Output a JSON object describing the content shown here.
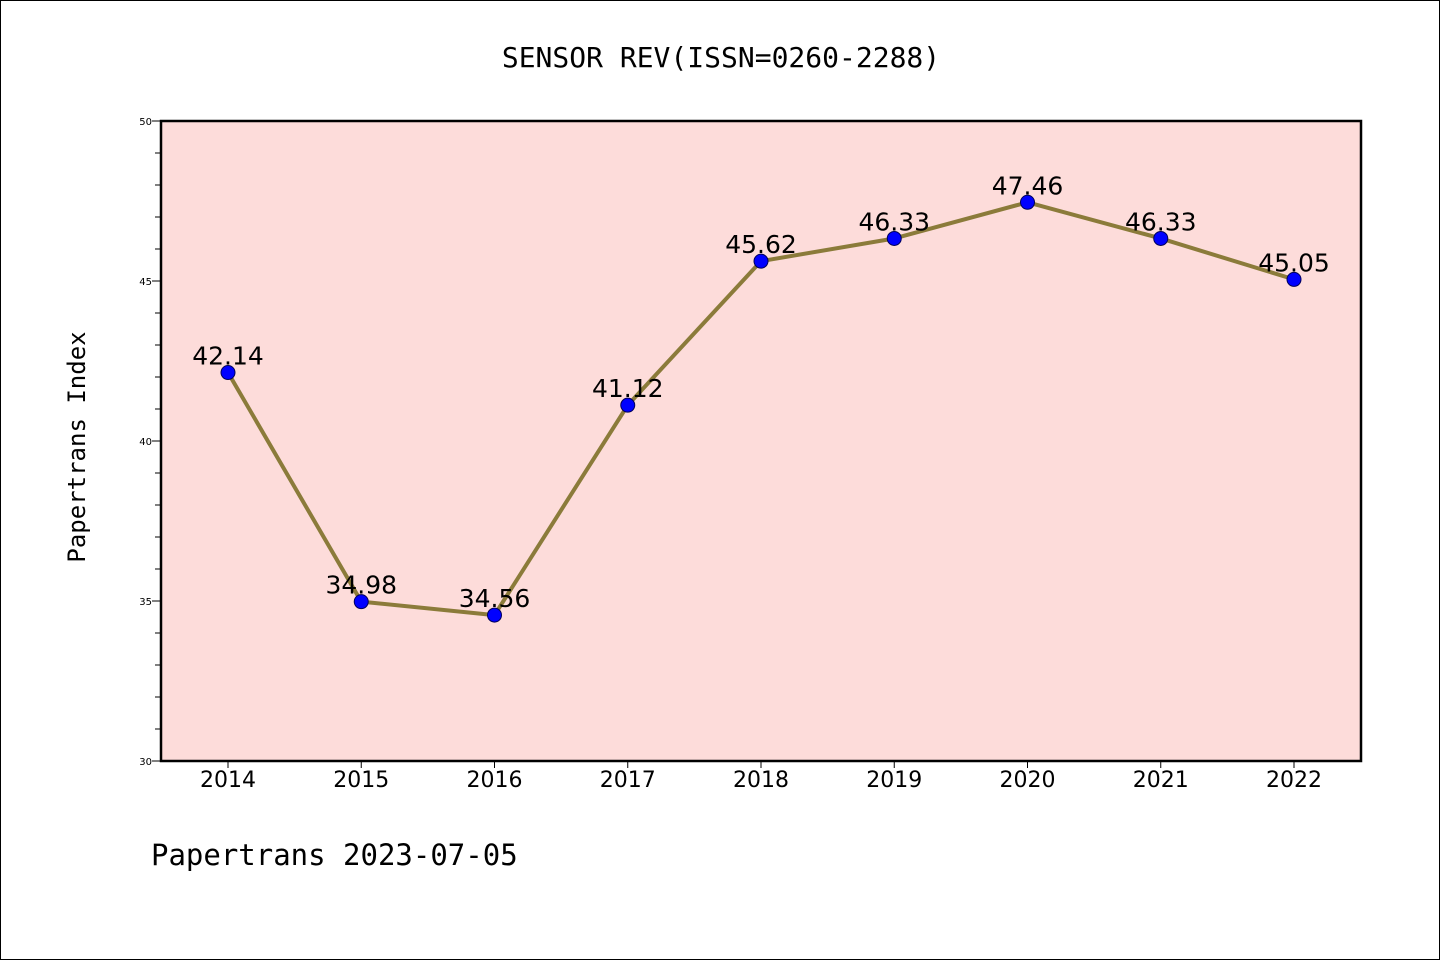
{
  "chart_data": {
    "type": "line",
    "title": "SENSOR REV(ISSN=0260-2288)",
    "xlabel": "",
    "ylabel": "Papertrans Index",
    "footer": "Papertrans 2023-07-05",
    "categories": [
      "2014",
      "2015",
      "2016",
      "2017",
      "2018",
      "2019",
      "2020",
      "2021",
      "2022"
    ],
    "series": [
      {
        "values": [
          42.14,
          34.98,
          34.56,
          41.12,
          45.62,
          46.33,
          47.46,
          46.33,
          45.05
        ]
      }
    ],
    "data_labels": [
      "42.14",
      "34.98",
      "34.56",
      "41.12",
      "45.62",
      "46.33",
      "47.46",
      "46.33",
      "45.05"
    ],
    "ylim": [
      30,
      50
    ],
    "y_ticks": [
      30,
      35,
      40,
      45,
      50
    ],
    "y_minor_step": 1,
    "grid": false,
    "legend": "none",
    "colors": {
      "plot_background": "#fddcda",
      "line": "#8b7b3a",
      "marker": "#0000ff",
      "marker_edge": "#00005a"
    }
  }
}
